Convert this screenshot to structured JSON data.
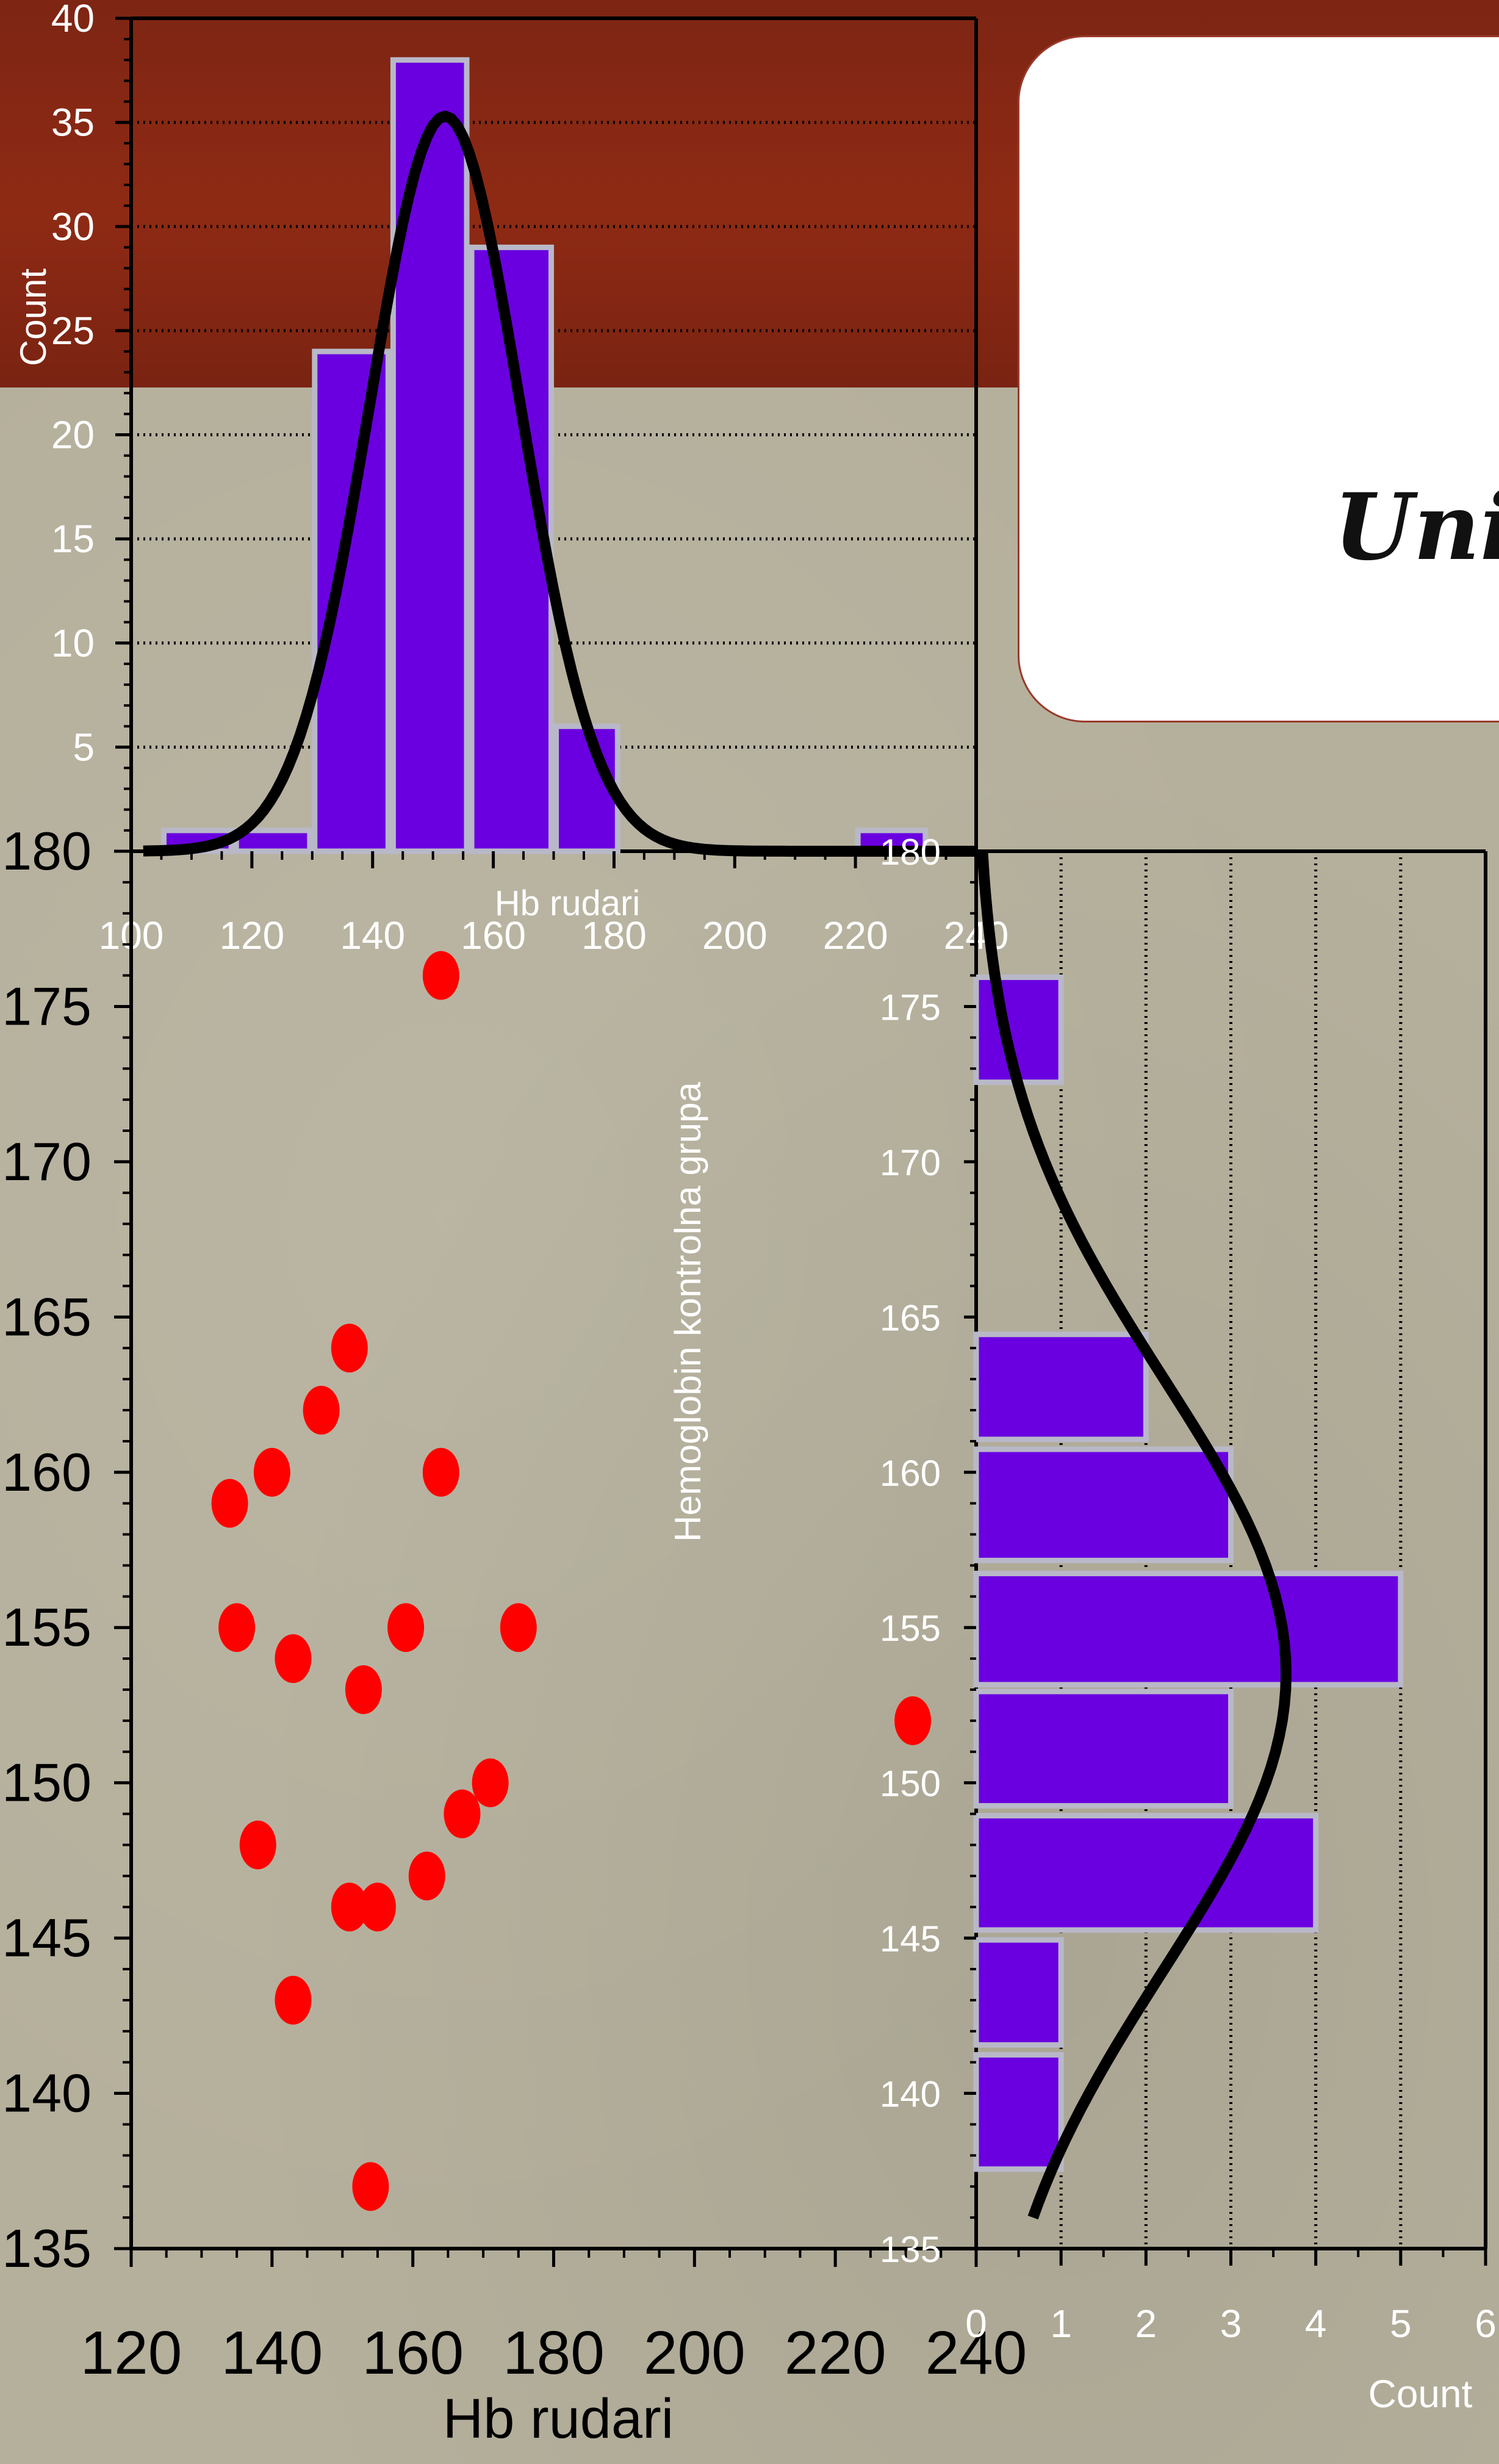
{
  "slide": {
    "title_fragment": "Uni"
  },
  "colors": {
    "bar_fill": "#6a00e0",
    "bar_edge": "#b8b8c8",
    "curve": "#000000",
    "point": "#ff0000",
    "band": "#8a2814"
  },
  "chart_data": [
    {
      "type": "bar",
      "panel": "top histogram",
      "xlabel": "Hb rudari",
      "ylabel": "Count",
      "x_ticks": [
        "100",
        "120",
        "140",
        "160",
        "180",
        "200",
        "220",
        "240"
      ],
      "y_ticks": [
        "5",
        "10",
        "15",
        "20",
        "25",
        "30",
        "35",
        "40"
      ],
      "xlim": [
        100,
        240
      ],
      "ylim": [
        0,
        40
      ],
      "bin_edges": [
        105,
        117,
        130,
        143,
        156,
        170,
        181,
        194,
        207,
        220,
        232
      ],
      "values": [
        1,
        1,
        24,
        38,
        29,
        6,
        0,
        0,
        0,
        1
      ],
      "curve": {
        "type": "normal",
        "mean": 152,
        "sd": 12.5,
        "peak": 35.3
      },
      "grid": "horizontal dotted"
    },
    {
      "type": "scatter",
      "panel": "main scatter",
      "xlabel": "Hb rudari",
      "ylabel": "Hemoglobin kontrolna grupa",
      "x_ticks": [
        "120",
        "140",
        "160",
        "180",
        "200",
        "220",
        "240"
      ],
      "y_ticks": [
        "135",
        "140",
        "145",
        "150",
        "155",
        "160",
        "165",
        "170",
        "175",
        "180"
      ],
      "xlim": [
        120,
        240
      ],
      "ylim": [
        135,
        180
      ],
      "points": [
        [
          164,
          176
        ],
        [
          151,
          164
        ],
        [
          147,
          162
        ],
        [
          140,
          160
        ],
        [
          164,
          160
        ],
        [
          134,
          159
        ],
        [
          135,
          155
        ],
        [
          143,
          154
        ],
        [
          159,
          155
        ],
        [
          175,
          155
        ],
        [
          153,
          153
        ],
        [
          231,
          152
        ],
        [
          171,
          150
        ],
        [
          167,
          149
        ],
        [
          138,
          148
        ],
        [
          162,
          147
        ],
        [
          151,
          146
        ],
        [
          155,
          146
        ],
        [
          143,
          143
        ],
        [
          154,
          137
        ]
      ]
    },
    {
      "type": "bar",
      "orientation": "horizontal",
      "panel": "right histogram",
      "xlabel": "Count",
      "ylabel": "",
      "x_ticks": [
        "0",
        "1",
        "2",
        "3",
        "4",
        "5",
        "6"
      ],
      "y_ticks": [
        "135",
        "140",
        "145",
        "150",
        "155",
        "160",
        "165",
        "170",
        "175",
        "180"
      ],
      "xlim": [
        0,
        6
      ],
      "ylim": [
        135,
        180
      ],
      "bins": [
        {
          "low": 137.5,
          "high": 141.3,
          "count": 1
        },
        {
          "low": 141.5,
          "high": 145,
          "count": 1
        },
        {
          "low": 145.2,
          "high": 149,
          "count": 4
        },
        {
          "low": 149.2,
          "high": 153,
          "count": 3
        },
        {
          "low": 153.1,
          "high": 156.8,
          "count": 5
        },
        {
          "low": 157.1,
          "high": 160.8,
          "count": 3
        },
        {
          "low": 161,
          "high": 164.5,
          "count": 2
        },
        {
          "low": 172.5,
          "high": 176,
          "count": 1
        }
      ],
      "curve": {
        "type": "normal",
        "mean": 153.5,
        "sd": 9.5,
        "peak": 3.65
      },
      "grid": "vertical dotted"
    }
  ]
}
